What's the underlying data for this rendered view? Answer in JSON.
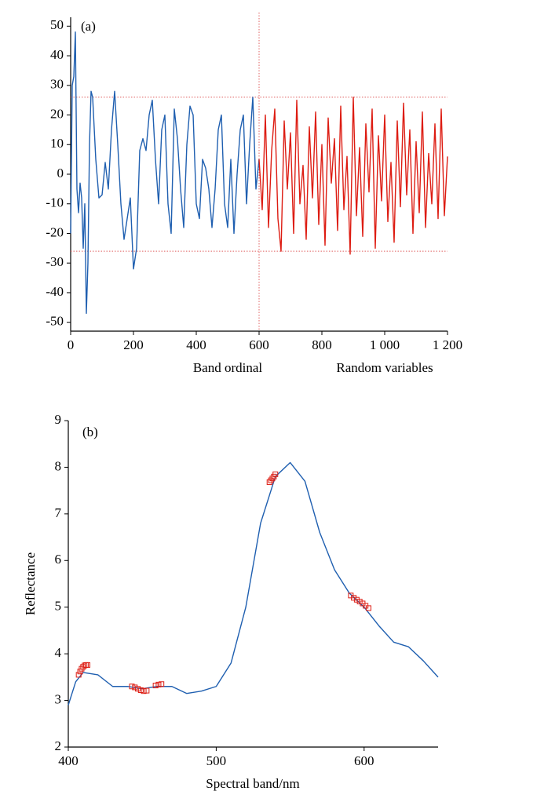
{
  "chart_data": [
    {
      "type": "line",
      "label": "(a)",
      "xlabel": "Band ordinal",
      "xlabel2": "Random variables",
      "xlim": [
        0,
        1200
      ],
      "xticks": [
        0,
        200,
        400,
        600,
        800,
        {
          "value": 1000,
          "label": "1 000"
        },
        {
          "value": 1200,
          "label": "1 200"
        }
      ],
      "ylim": [
        -53,
        53
      ],
      "yticks": [
        -50,
        -40,
        -30,
        -20,
        -10,
        0,
        10,
        20,
        30,
        40,
        50
      ],
      "hlines": [
        26,
        -26
      ],
      "vlines": [
        600
      ],
      "refline_color": "#e06060",
      "series": [
        {
          "color": "#1f5fb0",
          "x": [
            0,
            5,
            10,
            15,
            20,
            25,
            30,
            35,
            40,
            45,
            50,
            55,
            60,
            65,
            70,
            80,
            90,
            100,
            110,
            120,
            130,
            140,
            150,
            160,
            170,
            180,
            190,
            200,
            210,
            220,
            230,
            240,
            250,
            260,
            270,
            280,
            290,
            300,
            310,
            320,
            330,
            340,
            350,
            360,
            370,
            380,
            390,
            400,
            410,
            420,
            430,
            440,
            450,
            460,
            470,
            480,
            490,
            500,
            510,
            520,
            530,
            540,
            550,
            560,
            570,
            580,
            590,
            600
          ],
          "values": [
            -20,
            30,
            33,
            48,
            -5,
            -13,
            -3,
            -8,
            -25,
            -10,
            -47,
            -30,
            10,
            28,
            26,
            5,
            -8,
            -7,
            4,
            -5,
            15,
            28,
            10,
            -10,
            -22,
            -15,
            -8,
            -32,
            -25,
            8,
            12,
            8,
            20,
            25,
            5,
            -10,
            15,
            20,
            -10,
            -20,
            22,
            12,
            -5,
            -18,
            10,
            23,
            20,
            -10,
            -15,
            5,
            2,
            -5,
            -18,
            -5,
            15,
            20,
            -10,
            -18,
            5,
            -20,
            0,
            15,
            20,
            -10,
            10,
            26,
            -5,
            5
          ]
        },
        {
          "color": "#dd1c12",
          "x": [
            600,
            610,
            620,
            630,
            640,
            650,
            660,
            670,
            680,
            690,
            700,
            710,
            720,
            730,
            740,
            750,
            760,
            770,
            780,
            790,
            800,
            810,
            820,
            830,
            840,
            850,
            860,
            870,
            880,
            890,
            900,
            910,
            920,
            930,
            940,
            950,
            960,
            970,
            980,
            990,
            1000,
            1010,
            1020,
            1030,
            1040,
            1050,
            1060,
            1070,
            1080,
            1090,
            1100,
            1110,
            1120,
            1130,
            1140,
            1150,
            1160,
            1170,
            1180,
            1190,
            1200
          ],
          "values": [
            5,
            -12,
            20,
            -18,
            8,
            22,
            -15,
            -26,
            18,
            -5,
            14,
            -20,
            25,
            -10,
            3,
            -22,
            16,
            -8,
            21,
            -17,
            10,
            -24,
            19,
            -3,
            12,
            -19,
            23,
            -12,
            6,
            -27,
            26,
            -14,
            9,
            -21,
            17,
            -6,
            22,
            -25,
            13,
            -9,
            20,
            -16,
            4,
            -23,
            18,
            -11,
            24,
            -7,
            15,
            -20,
            11,
            -13,
            21,
            -18,
            7,
            -10,
            17,
            -15,
            22,
            -14,
            6
          ]
        }
      ]
    },
    {
      "type": "line",
      "label": "(b)",
      "xlabel": "Spectral band/nm",
      "ylabel": "Reflectance",
      "xlim": [
        400,
        650
      ],
      "xticks": [
        400,
        500,
        600
      ],
      "ylim": [
        2,
        9
      ],
      "yticks": [
        2,
        3,
        4,
        5,
        6,
        7,
        8,
        9
      ],
      "series": [
        {
          "color": "#1f5fb0",
          "x": [
            400,
            405,
            410,
            420,
            430,
            440,
            450,
            460,
            470,
            480,
            490,
            500,
            510,
            520,
            530,
            540,
            550,
            560,
            570,
            580,
            590,
            600,
            610,
            620,
            630,
            640,
            650
          ],
          "values": [
            2.9,
            3.4,
            3.6,
            3.55,
            3.3,
            3.3,
            3.25,
            3.3,
            3.3,
            3.15,
            3.2,
            3.3,
            3.8,
            5.0,
            6.8,
            7.8,
            8.1,
            7.7,
            6.6,
            5.8,
            5.3,
            5.0,
            4.6,
            4.25,
            4.15,
            3.85,
            3.5
          ]
        },
        {
          "color": "#dd1c12",
          "marker": "square",
          "x": [
            407,
            408,
            409,
            410,
            411,
            412,
            413,
            443,
            445,
            447,
            449,
            451,
            453,
            459,
            461,
            463,
            536,
            537,
            538,
            539,
            540,
            591,
            593,
            595,
            597,
            599,
            601,
            603
          ],
          "values": [
            3.55,
            3.62,
            3.68,
            3.72,
            3.75,
            3.76,
            3.76,
            3.3,
            3.28,
            3.25,
            3.22,
            3.2,
            3.21,
            3.32,
            3.34,
            3.35,
            7.68,
            7.72,
            7.76,
            7.8,
            7.85,
            5.25,
            5.2,
            5.16,
            5.12,
            5.08,
            5.03,
            4.98
          ]
        }
      ]
    }
  ]
}
